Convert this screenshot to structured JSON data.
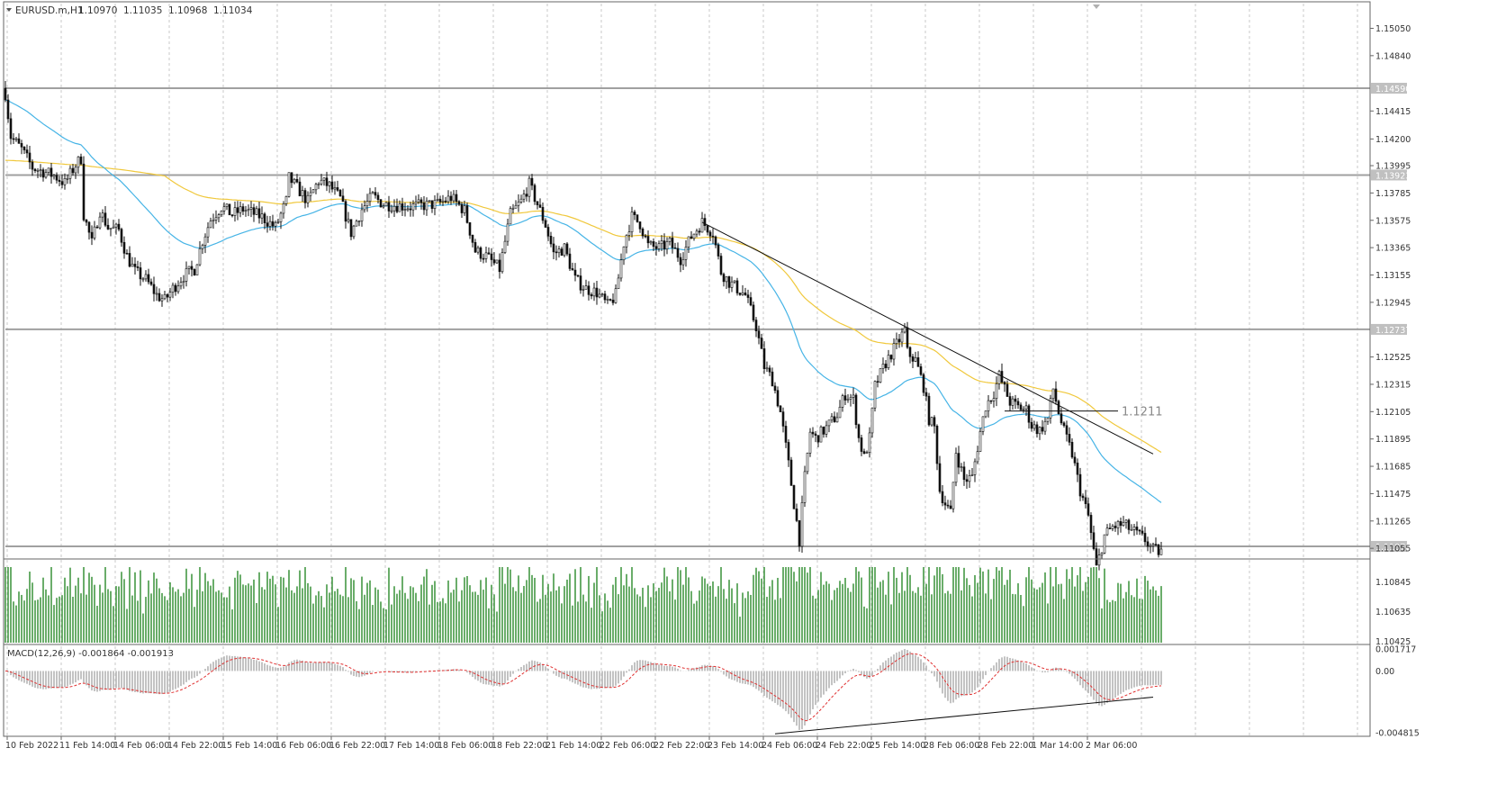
{
  "chart_data": {
    "type": "candlestick",
    "symbol_header": "EURUSD.m,H1",
    "ohlc_header": [
      "1.10970",
      "1.11035",
      "1.10968",
      "1.11034"
    ],
    "x_axis_labels": [
      "10 Feb 2022",
      "11 Feb 14:00",
      "14 Feb 06:00",
      "14 Feb 22:00",
      "15 Feb 14:00",
      "16 Feb 06:00",
      "16 Feb 22:00",
      "17 Feb 14:00",
      "18 Feb 06:00",
      "18 Feb 22:00",
      "21 Feb 14:00",
      "22 Feb 06:00",
      "22 Feb 22:00",
      "23 Feb 14:00",
      "24 Feb 06:00",
      "24 Feb 22:00",
      "25 Feb 14:00",
      "28 Feb 06:00",
      "28 Feb 22:00",
      "1 Mar 14:00",
      "2 Mar 06:00"
    ],
    "price_ticks": [
      1.1505,
      1.1484,
      1.14415,
      1.142,
      1.13995,
      1.13785,
      1.13575,
      1.13365,
      1.13155,
      1.12945,
      1.12525,
      1.12315,
      1.12105,
      1.11895,
      1.11685,
      1.11475,
      1.11265,
      1.11055
    ],
    "price_tick_labels": [
      "1.15050",
      "1.14840",
      "1.14415",
      "1.14200",
      "1.13995",
      "1.13785",
      "1.13575",
      "1.13365",
      "1.13155",
      "1.12945",
      "1.12525",
      "1.12315",
      "1.12105",
      "1.11895",
      "1.11685",
      "1.11475",
      "1.11265",
      "1.11055"
    ],
    "price_ylim": [
      1.1098,
      1.1524
    ],
    "horizontal_levels": [
      {
        "value": 1.1459,
        "label": "1.14590"
      },
      {
        "value": 1.13923,
        "label": "1.13923"
      },
      {
        "value": 1.12737,
        "label": "1.12737"
      },
      {
        "value": 1.1107,
        "label": "1.11070"
      }
    ],
    "level_label_bg": "#c0c0c0",
    "price_annotation": {
      "value": 1.1211,
      "label": "1.1211"
    },
    "trendline": {
      "start_bar": 258,
      "start_price": 1.1356,
      "end_bar": 425,
      "end_price": 1.1178
    },
    "volume_ticks": [
      1.10845,
      1.10635,
      1.10425
    ],
    "volume_tick_labels": [
      "1.10845",
      "1.10635",
      "1.10425"
    ],
    "macd": {
      "label": "MACD(12,26,9) -0.001864 -0.001913",
      "ticks": [
        0.001717,
        0.0,
        -0.004815
      ],
      "tick_labels": [
        "0.001717",
        "0.00",
        "-0.004815"
      ],
      "ylim": [
        -0.004815,
        0.001717
      ],
      "trendline": {
        "start_bar": 285,
        "start_value": -0.0049,
        "end_bar": 415,
        "end_value": -0.0019
      }
    },
    "series": [
      {
        "name": "EMA fast",
        "color": "#46b4e6"
      },
      {
        "name": "EMA slow",
        "color": "#f0c83c"
      },
      {
        "name": "Volume",
        "color": "#2a8a2a"
      },
      {
        "name": "MACD signal",
        "color": "#e03030"
      }
    ],
    "bars": 405,
    "grid": true,
    "grid_style": "dashed"
  }
}
